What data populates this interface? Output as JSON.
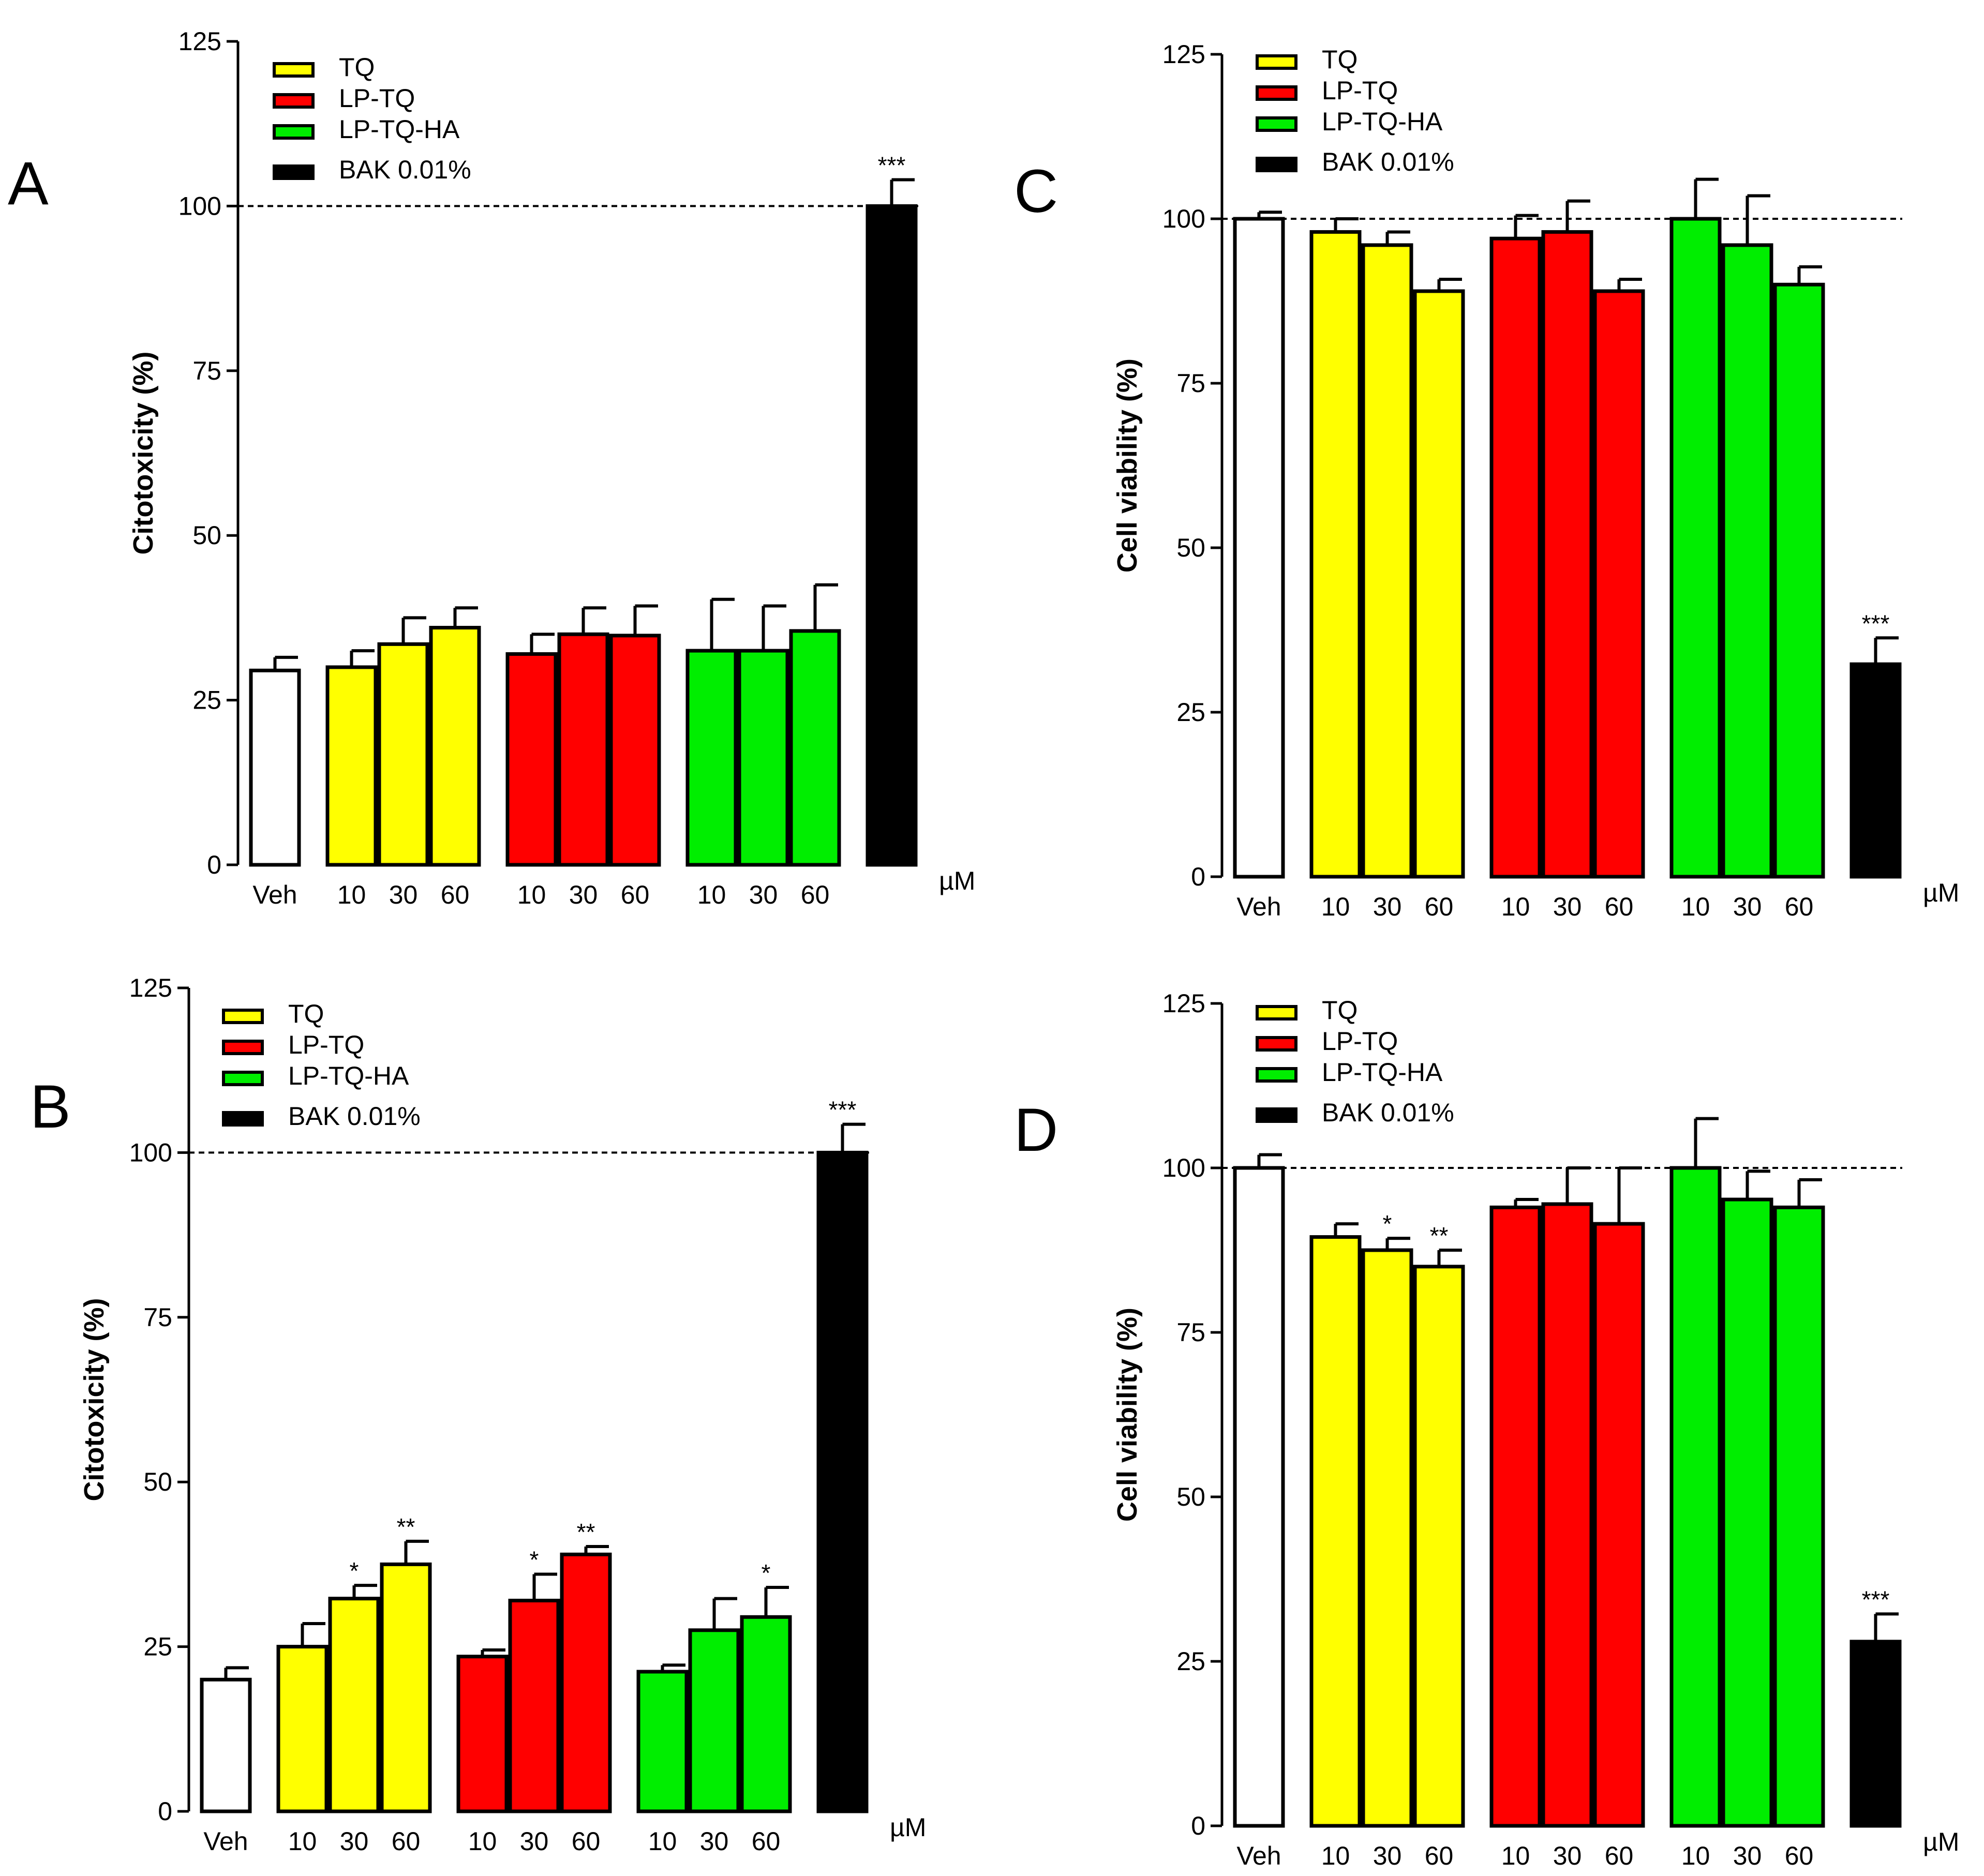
{
  "figure": {
    "panels": [
      "A",
      "B",
      "C",
      "D"
    ]
  },
  "legend": {
    "entries": [
      {
        "label": "TQ",
        "color": "#ffff00"
      },
      {
        "label": "LP-TQ",
        "color": "#ff0000"
      },
      {
        "label": "LP-TQ-HA",
        "color": "#00ee00"
      },
      {
        "label": "BAK 0.01%",
        "color": "#000000"
      }
    ]
  },
  "chart_data": [
    {
      "panel": "A",
      "type": "bar",
      "ylabel": "Citotoxicity (%)",
      "ylim": [
        0,
        125
      ],
      "yticks": [
        0,
        25,
        50,
        75,
        100,
        125
      ],
      "reference_line": 100,
      "unit_label": "µM",
      "categories": [
        "Veh",
        "10",
        "30",
        "60",
        "10",
        "30",
        "60",
        "10",
        "30",
        "60",
        ""
      ],
      "groups": [
        "Veh",
        "TQ",
        "TQ",
        "TQ",
        "LP-TQ",
        "LP-TQ",
        "LP-TQ",
        "LP-TQ-HA",
        "LP-TQ-HA",
        "LP-TQ-HA",
        "BAK 0.01%"
      ],
      "colors": [
        "#ffffff",
        "#ffff00",
        "#ffff00",
        "#ffff00",
        "#ff0000",
        "#ff0000",
        "#ff0000",
        "#00ee00",
        "#00ee00",
        "#00ee00",
        "#000000"
      ],
      "values": [
        29.5,
        30,
        33.5,
        36,
        32,
        35,
        34.8,
        32.5,
        32.5,
        35.5,
        100
      ],
      "errors": [
        2,
        2.5,
        4,
        3,
        3,
        4,
        4.5,
        7.8,
        6.8,
        7,
        4
      ],
      "significance": [
        "",
        "",
        "",
        "",
        "",
        "",
        "",
        "",
        "",
        "",
        "***"
      ]
    },
    {
      "panel": "B",
      "type": "bar",
      "ylabel": "Citotoxicity (%)",
      "ylim": [
        0,
        125
      ],
      "yticks": [
        0,
        25,
        50,
        75,
        100,
        125
      ],
      "reference_line": 100,
      "unit_label": "µM",
      "categories": [
        "Veh",
        "10",
        "30",
        "60",
        "10",
        "30",
        "60",
        "10",
        "30",
        "60",
        ""
      ],
      "groups": [
        "Veh",
        "TQ",
        "TQ",
        "TQ",
        "LP-TQ",
        "LP-TQ",
        "LP-TQ",
        "LP-TQ-HA",
        "LP-TQ-HA",
        "LP-TQ-HA",
        "BAK 0.01%"
      ],
      "colors": [
        "#ffffff",
        "#ffff00",
        "#ffff00",
        "#ffff00",
        "#ff0000",
        "#ff0000",
        "#ff0000",
        "#00ee00",
        "#00ee00",
        "#00ee00",
        "#000000"
      ],
      "values": [
        20,
        25,
        32.3,
        37.5,
        23.5,
        32,
        39,
        21.2,
        27.5,
        29.5,
        100
      ],
      "errors": [
        1.8,
        3.5,
        2,
        3.5,
        1,
        4,
        1.2,
        1,
        4.8,
        4.5,
        4.3
      ],
      "significance": [
        "",
        "",
        "*",
        "**",
        "",
        "*",
        "**",
        "",
        "",
        "*",
        "***"
      ]
    },
    {
      "panel": "C",
      "type": "bar",
      "ylabel": "Cell viability (%)",
      "ylim": [
        0,
        125
      ],
      "yticks": [
        0,
        25,
        50,
        75,
        100,
        125
      ],
      "reference_line": 100,
      "unit_label": "µM",
      "categories": [
        "Veh",
        "10",
        "30",
        "60",
        "10",
        "30",
        "60",
        "10",
        "30",
        "60",
        ""
      ],
      "groups": [
        "Veh",
        "TQ",
        "TQ",
        "TQ",
        "LP-TQ",
        "LP-TQ",
        "LP-TQ",
        "LP-TQ-HA",
        "LP-TQ-HA",
        "LP-TQ-HA",
        "BAK 0.01%"
      ],
      "colors": [
        "#ffffff",
        "#ffff00",
        "#ffff00",
        "#ffff00",
        "#ff0000",
        "#ff0000",
        "#ff0000",
        "#00ee00",
        "#00ee00",
        "#00ee00",
        "#000000"
      ],
      "values": [
        100,
        98,
        96,
        89,
        97,
        98,
        89,
        100,
        96,
        90,
        32.3
      ],
      "errors": [
        1,
        2,
        2,
        1.8,
        3.5,
        4.7,
        1.8,
        6,
        7.5,
        2.7,
        4
      ],
      "significance": [
        "",
        "",
        "",
        "",
        "",
        "",
        "",
        "",
        "",
        "",
        "***"
      ]
    },
    {
      "panel": "D",
      "type": "bar",
      "ylabel": "Cell viability (%)",
      "ylim": [
        0,
        125
      ],
      "yticks": [
        0,
        25,
        50,
        75,
        100,
        125
      ],
      "reference_line": 100,
      "unit_label": "µM",
      "categories": [
        "Veh",
        "10",
        "30",
        "60",
        "10",
        "30",
        "60",
        "10",
        "30",
        "60",
        ""
      ],
      "groups": [
        "Veh",
        "TQ",
        "TQ",
        "TQ",
        "LP-TQ",
        "LP-TQ",
        "LP-TQ",
        "LP-TQ-HA",
        "LP-TQ-HA",
        "LP-TQ-HA",
        "BAK 0.01%"
      ],
      "colors": [
        "#ffffff",
        "#ffff00",
        "#ffff00",
        "#ffff00",
        "#ff0000",
        "#ff0000",
        "#ff0000",
        "#00ee00",
        "#00ee00",
        "#00ee00",
        "#000000"
      ],
      "values": [
        100,
        89.5,
        87.5,
        85,
        94,
        94.5,
        91.5,
        100,
        95.2,
        94,
        28
      ],
      "errors": [
        2,
        2,
        1.8,
        2.5,
        1.2,
        5.5,
        8.5,
        7.5,
        4.3,
        4.2,
        4.2
      ],
      "significance": [
        "",
        "",
        "*",
        "**",
        "",
        "",
        "",
        "",
        "",
        "",
        "***"
      ]
    }
  ]
}
